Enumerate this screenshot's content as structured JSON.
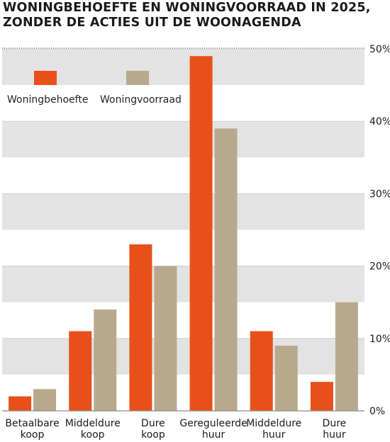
{
  "title_lines": [
    "WONINGBEHOEFTE EN WONINGVOORRAAD IN 2025,",
    "ZONDER DE ACTIES UIT DE WOONAGENDA"
  ],
  "chart_data": {
    "type": "bar",
    "categories": [
      [
        "Betaalbare",
        "koop"
      ],
      [
        "Middeldure",
        "koop"
      ],
      [
        "Dure",
        "koop"
      ],
      [
        "Gereguleerde",
        "huur"
      ],
      [
        "Middeldure",
        "huur"
      ],
      [
        "Dure",
        "huur"
      ]
    ],
    "series": [
      {
        "name": "Woningbehoefte",
        "color": "#e8501a",
        "values": [
          2,
          11,
          23,
          49,
          11,
          4
        ]
      },
      {
        "name": "Woningvoorraad",
        "color": "#b8a98e",
        "values": [
          3,
          14,
          20,
          39,
          9,
          15
        ]
      }
    ],
    "ylim": [
      0,
      50
    ],
    "yticks": [
      0,
      10,
      20,
      30,
      40,
      50
    ],
    "ytick_labels": [
      "0%",
      "10%",
      "20%",
      "30%",
      "40%",
      "50%"
    ],
    "y_axis_position": "right",
    "grid": "alternating horizontal bands",
    "legend_position": "top-left",
    "band_color": "#e3e3e3"
  }
}
